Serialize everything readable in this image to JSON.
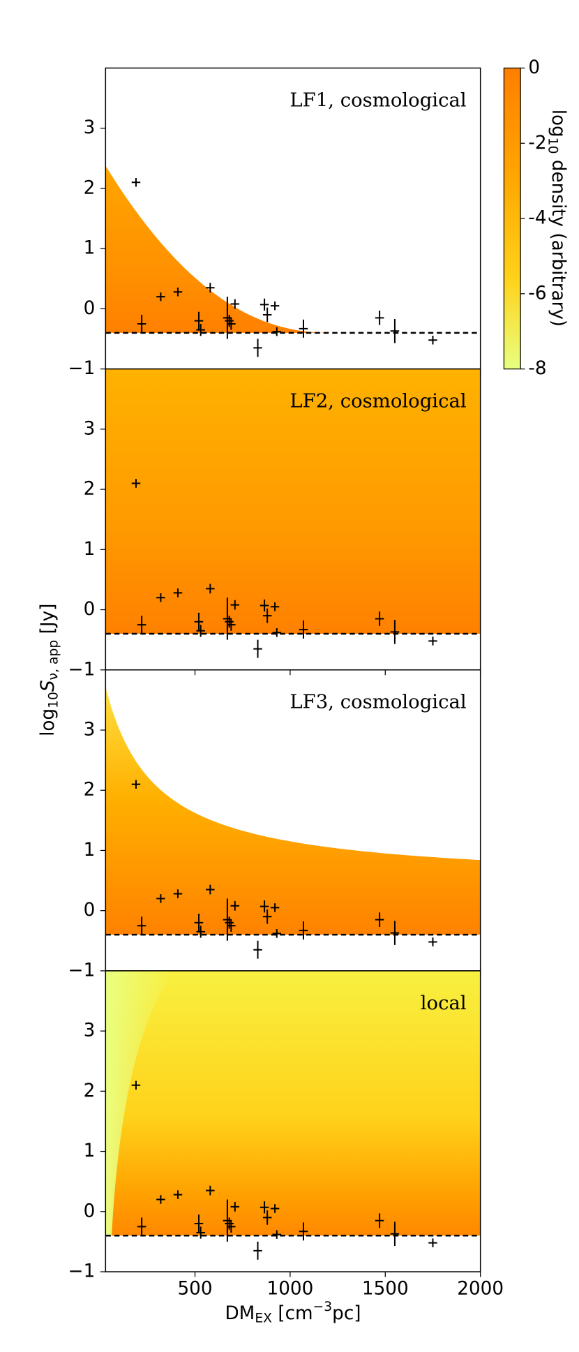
{
  "xlabel": [
    "DM",
    "EX",
    " [cm",
    "−3",
    "pc]"
  ],
  "ylabel": [
    "log",
    "10",
    "S",
    "ν, app",
    " [Jy]"
  ],
  "colorbar": {
    "label": [
      "log",
      "10",
      " density (arbitrary)"
    ],
    "lim": [
      -8,
      0
    ],
    "ticks": [
      0,
      -2,
      -4,
      -6,
      -8
    ]
  },
  "chart_data": [
    {
      "type": "scatter",
      "title": "LF1, cosmological",
      "threshold": -0.4,
      "x": [
        190,
        220,
        320,
        410,
        520,
        530,
        580,
        670,
        680,
        690,
        710,
        830,
        865,
        880,
        920,
        930,
        1070,
        1470,
        1550,
        1750
      ],
      "y": [
        2.1,
        -0.25,
        0.2,
        0.28,
        -0.2,
        -0.35,
        0.35,
        -0.15,
        -0.2,
        -0.25,
        0.08,
        -0.65,
        0.07,
        -0.1,
        0.05,
        -0.38,
        -0.33,
        -0.15,
        -0.37,
        -0.52
      ],
      "yerr": [
        0.05,
        0.15,
        0.05,
        0.05,
        0.15,
        0.1,
        0.08,
        0.35,
        0.1,
        0.1,
        0.08,
        0.15,
        0.1,
        0.12,
        0.05,
        0.05,
        0.15,
        0.12,
        0.2,
        0.05
      ],
      "xlim": [
        30,
        2000
      ],
      "ylim": [
        -1,
        4
      ],
      "yticks": [
        {
          "value": -1,
          "label": "−1"
        },
        0,
        1,
        2,
        3
      ]
    },
    {
      "type": "scatter",
      "title": "LF2, cosmological",
      "threshold": -0.4,
      "x": [
        190,
        220,
        320,
        410,
        520,
        530,
        580,
        670,
        680,
        690,
        710,
        830,
        865,
        880,
        920,
        930,
        1070,
        1470,
        1550,
        1750
      ],
      "y": [
        2.1,
        -0.25,
        0.2,
        0.28,
        -0.2,
        -0.35,
        0.35,
        -0.15,
        -0.2,
        -0.25,
        0.08,
        -0.65,
        0.07,
        -0.1,
        0.05,
        -0.38,
        -0.33,
        -0.15,
        -0.37,
        -0.52
      ],
      "yerr": [
        0.05,
        0.15,
        0.05,
        0.05,
        0.15,
        0.1,
        0.08,
        0.35,
        0.1,
        0.1,
        0.08,
        0.15,
        0.1,
        0.12,
        0.05,
        0.05,
        0.15,
        0.12,
        0.2,
        0.05
      ],
      "xlim": [
        30,
        2000
      ],
      "ylim": [
        -1,
        4
      ],
      "yticks": [
        {
          "value": -1,
          "label": "−1"
        },
        0,
        1,
        2,
        3
      ]
    },
    {
      "type": "scatter",
      "title": "LF3, cosmological",
      "threshold": -0.4,
      "x": [
        190,
        220,
        320,
        410,
        520,
        530,
        580,
        670,
        680,
        690,
        710,
        830,
        865,
        880,
        920,
        930,
        1070,
        1470,
        1550,
        1750
      ],
      "y": [
        2.1,
        -0.25,
        0.2,
        0.28,
        -0.2,
        -0.35,
        0.35,
        -0.15,
        -0.2,
        -0.25,
        0.08,
        -0.65,
        0.07,
        -0.1,
        0.05,
        -0.38,
        -0.33,
        -0.15,
        -0.37,
        -0.52
      ],
      "yerr": [
        0.05,
        0.15,
        0.05,
        0.05,
        0.15,
        0.1,
        0.08,
        0.35,
        0.1,
        0.1,
        0.08,
        0.15,
        0.1,
        0.12,
        0.05,
        0.05,
        0.15,
        0.12,
        0.2,
        0.05
      ],
      "xlim": [
        30,
        2000
      ],
      "ylim": [
        -1,
        4
      ],
      "yticks": [
        {
          "value": -1,
          "label": "−1"
        },
        0,
        1,
        2,
        3
      ]
    },
    {
      "type": "scatter",
      "title": "local",
      "threshold": -0.4,
      "x": [
        190,
        220,
        320,
        410,
        520,
        530,
        580,
        670,
        680,
        690,
        710,
        830,
        865,
        880,
        920,
        930,
        1070,
        1470,
        1550,
        1750
      ],
      "y": [
        2.1,
        -0.25,
        0.2,
        0.28,
        -0.2,
        -0.35,
        0.35,
        -0.15,
        -0.2,
        -0.25,
        0.08,
        -0.65,
        0.07,
        -0.1,
        0.05,
        -0.38,
        -0.33,
        -0.15,
        -0.37,
        -0.52
      ],
      "yerr": [
        0.05,
        0.15,
        0.05,
        0.05,
        0.15,
        0.1,
        0.08,
        0.35,
        0.1,
        0.1,
        0.08,
        0.15,
        0.1,
        0.12,
        0.05,
        0.05,
        0.15,
        0.12,
        0.2,
        0.05
      ],
      "xlim": [
        30,
        2000
      ],
      "ylim": [
        -1,
        4
      ],
      "yticks": [
        {
          "value": -1,
          "label": "−1"
        },
        0,
        1,
        2,
        3
      ],
      "xticks": [
        500,
        1000,
        1500,
        2000
      ]
    }
  ]
}
